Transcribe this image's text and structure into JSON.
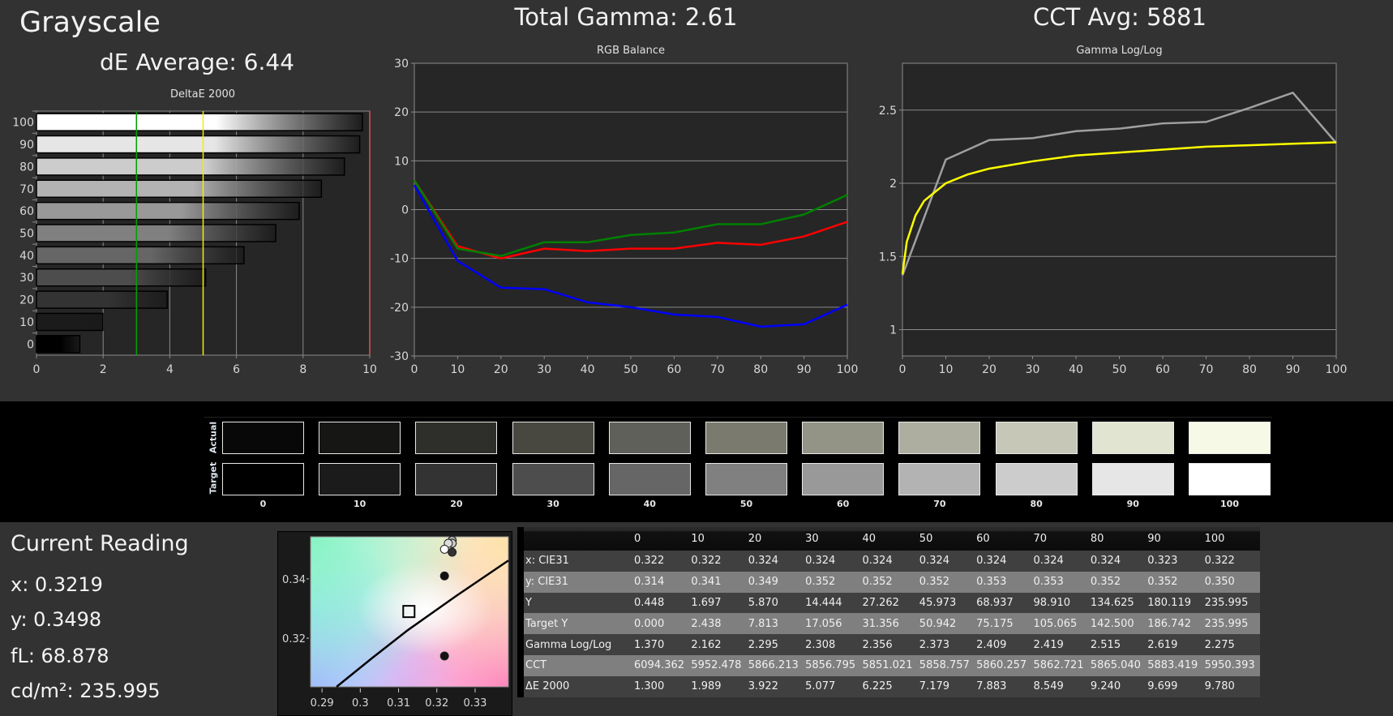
{
  "page": {
    "title": "Grayscale",
    "de_average": "dE Average: 6.44",
    "total_gamma": "Total Gamma: 2.61",
    "cct_avg": "CCT Avg: 5881"
  },
  "colors": {
    "background": "#323232",
    "plot_bg": "#262626",
    "red": "#ff0000",
    "green": "#008000",
    "blue": "#0000ff",
    "target": "#ffff00",
    "measured": "#a0a0a0"
  },
  "current_reading": {
    "title": "Current Reading",
    "x": "x: 0.3219",
    "y": "y: 0.3498",
    "fl": "fL: 68.878",
    "cdm2": "cd/m²: 235.995"
  },
  "swatches": {
    "actual_label": "Actual",
    "target_label": "Target",
    "levels": [
      "0",
      "10",
      "20",
      "30",
      "40",
      "50",
      "60",
      "70",
      "80",
      "90",
      "100"
    ],
    "actual_colors": [
      "#080808",
      "#161614",
      "#2e2f2a",
      "#484840",
      "#60605a",
      "#7a7a6e",
      "#949486",
      "#adaea0",
      "#c6c7b6",
      "#e1e4d0",
      "#f5f9e6"
    ],
    "target_colors": [
      "#000000",
      "#1b1b1b",
      "#333333",
      "#4d4d4d",
      "#666666",
      "#808080",
      "#999999",
      "#b3b3b3",
      "#cccccc",
      "#e6e6e6",
      "#ffffff"
    ]
  },
  "table": {
    "headers": [
      "",
      "0",
      "10",
      "20",
      "30",
      "40",
      "50",
      "60",
      "70",
      "80",
      "90",
      "100"
    ],
    "rows": [
      [
        "x: CIE31",
        "0.322",
        "0.322",
        "0.324",
        "0.324",
        "0.324",
        "0.324",
        "0.324",
        "0.324",
        "0.324",
        "0.323",
        "0.322"
      ],
      [
        "y: CIE31",
        "0.314",
        "0.341",
        "0.349",
        "0.352",
        "0.352",
        "0.352",
        "0.353",
        "0.353",
        "0.352",
        "0.352",
        "0.350"
      ],
      [
        "Y",
        "0.448",
        "1.697",
        "5.870",
        "14.444",
        "27.262",
        "45.973",
        "68.937",
        "98.910",
        "134.625",
        "180.119",
        "235.995"
      ],
      [
        "Target Y",
        "0.000",
        "2.438",
        "7.813",
        "17.056",
        "31.356",
        "50.942",
        "75.175",
        "105.065",
        "142.500",
        "186.742",
        "235.995"
      ],
      [
        "Gamma Log/Log",
        "1.370",
        "2.162",
        "2.295",
        "2.308",
        "2.356",
        "2.373",
        "2.409",
        "2.419",
        "2.515",
        "2.619",
        "2.275"
      ],
      [
        "CCT",
        "6094.362",
        "5952.478",
        "5866.213",
        "5856.795",
        "5851.021",
        "5858.757",
        "5860.257",
        "5862.721",
        "5865.040",
        "5883.419",
        "5950.393"
      ],
      [
        "ΔE 2000",
        "1.300",
        "1.989",
        "3.922",
        "5.077",
        "6.225",
        "7.179",
        "7.883",
        "8.549",
        "9.240",
        "9.699",
        "9.780"
      ]
    ]
  },
  "chart_data": [
    {
      "id": "deltae",
      "type": "bar",
      "orientation": "horizontal",
      "title": "DeltaE 2000",
      "categories": [
        "0",
        "10",
        "20",
        "30",
        "40",
        "50",
        "60",
        "70",
        "80",
        "90",
        "100"
      ],
      "values": [
        1.3,
        1.989,
        3.922,
        5.077,
        6.225,
        7.179,
        7.883,
        8.549,
        9.24,
        9.699,
        9.78
      ],
      "xlim": [
        0,
        10
      ],
      "xticks": [
        "0",
        "2",
        "4",
        "6",
        "8",
        "10"
      ],
      "reference_lines": [
        {
          "value": 3,
          "color": "#00a000"
        },
        {
          "value": 5,
          "color": "#f0f000"
        },
        {
          "value": 10,
          "color": "#e05050"
        }
      ],
      "grid": true
    },
    {
      "id": "rgb",
      "type": "line",
      "title": "RGB Balance",
      "x": [
        0,
        10,
        20,
        30,
        40,
        50,
        60,
        70,
        80,
        90,
        100
      ],
      "ylim": [
        -30,
        30
      ],
      "xticks": [
        "0",
        "10",
        "20",
        "30",
        "40",
        "50",
        "60",
        "70",
        "80",
        "90",
        "100"
      ],
      "yticks": [
        "30",
        "20",
        "10",
        "0",
        "-10",
        "-20",
        "-30"
      ],
      "series": [
        {
          "color": "#ff0000",
          "values": [
            6,
            -7.5,
            -10,
            -8,
            -8.5,
            -8,
            -8,
            -6.8,
            -7.2,
            -5.5,
            -2.5
          ]
        },
        {
          "color": "#008000",
          "values": [
            6,
            -8,
            -9.5,
            -6.7,
            -6.7,
            -5.2,
            -4.7,
            -3,
            -3,
            -1,
            3
          ]
        },
        {
          "color": "#0000ff",
          "values": [
            5,
            -10.5,
            -16,
            -16.3,
            -19,
            -20,
            -21.5,
            -22,
            -24,
            -23.5,
            -19.5
          ]
        }
      ],
      "grid": true
    },
    {
      "id": "gamma",
      "type": "line",
      "title": "Gamma Log/Log",
      "ylim": [
        0.82,
        2.82
      ],
      "xlim": [
        0,
        100
      ],
      "xticks": [
        "0",
        "10",
        "20",
        "30",
        "40",
        "50",
        "60",
        "70",
        "80",
        "90",
        "100"
      ],
      "yticks": [
        "2.5",
        "2",
        "1.5",
        "1"
      ],
      "series": [
        {
          "color": "#a0a0a0",
          "x": [
            0,
            10,
            20,
            30,
            40,
            50,
            60,
            70,
            80,
            90,
            100
          ],
          "values": [
            1.37,
            2.162,
            2.295,
            2.308,
            2.356,
            2.373,
            2.409,
            2.419,
            2.515,
            2.619,
            2.275
          ]
        },
        {
          "color": "#ffff00",
          "x": [
            0,
            1,
            3,
            5,
            10,
            15,
            20,
            30,
            40,
            50,
            60,
            70,
            80,
            90,
            100
          ],
          "values": [
            1.38,
            1.6,
            1.78,
            1.88,
            2.0,
            2.06,
            2.1,
            2.15,
            2.19,
            2.21,
            2.23,
            2.25,
            2.26,
            2.27,
            2.28
          ]
        }
      ],
      "grid": true
    },
    {
      "id": "cie",
      "type": "scatter",
      "xlim": [
        0.287,
        0.3387
      ],
      "ylim": [
        0.3036,
        0.3542
      ],
      "xticks": [
        "0.29",
        "0.3",
        "0.31",
        "0.32",
        "0.33"
      ],
      "yticks": [
        "0.34",
        "0.32"
      ],
      "target_point": [
        0.3127,
        0.329
      ],
      "locus": [
        [
          0.2938,
          0.3036
        ],
        [
          0.303,
          0.3132
        ],
        [
          0.3124,
          0.3227
        ],
        [
          0.325,
          0.3342
        ],
        [
          0.3387,
          0.3462
        ]
      ],
      "points": [
        [
          0.322,
          0.314
        ],
        [
          0.322,
          0.341
        ],
        [
          0.324,
          0.349
        ],
        [
          0.324,
          0.352
        ],
        [
          0.324,
          0.352
        ],
        [
          0.324,
          0.352
        ],
        [
          0.324,
          0.353
        ],
        [
          0.324,
          0.353
        ],
        [
          0.324,
          0.352
        ],
        [
          0.323,
          0.352
        ],
        [
          0.322,
          0.35
        ]
      ]
    }
  ]
}
